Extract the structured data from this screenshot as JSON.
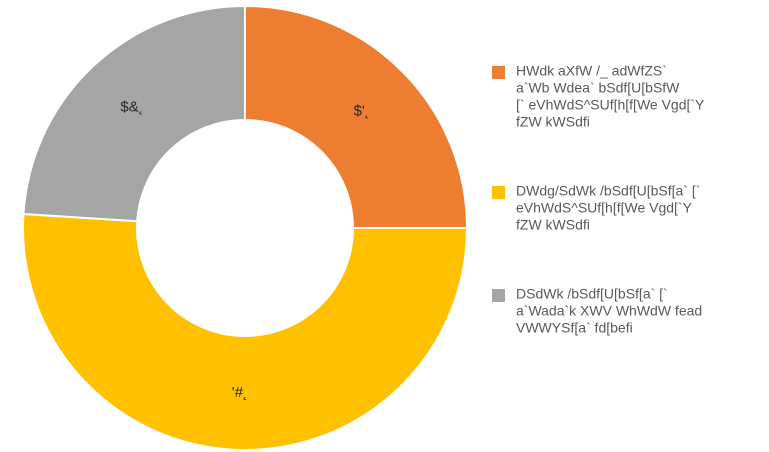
{
  "chart_data": {
    "type": "donut",
    "categories": [
      [
        "HWdk aXfW /_ adWfZS`",
        "a`Wb Wdea` bSdf[U[bSfW",
        "[` eVhWdS^SUf[h[f[We Vgd[`Y",
        "fZW kWSdfi"
      ],
      [
        "DWdg/SdWk /bSdf[U[bSf[a` [`",
        "eVhWdS^SUf[h[f[We Vgd[`Y",
        "fZW kWSdfi"
      ],
      [
        "DSdWk /bSdf[U[bSf[a` [`",
        "a`Wada`k XWV WhWdW fead",
        "VWWYSf[a` fd[befi"
      ]
    ],
    "values": [
      25,
      51,
      24
    ],
    "value_labels": [
      "$'˛",
      "'#˛",
      "$&˛"
    ],
    "colors": [
      "#ed7d31",
      "#ffc000",
      "#a5a5a5"
    ]
  }
}
